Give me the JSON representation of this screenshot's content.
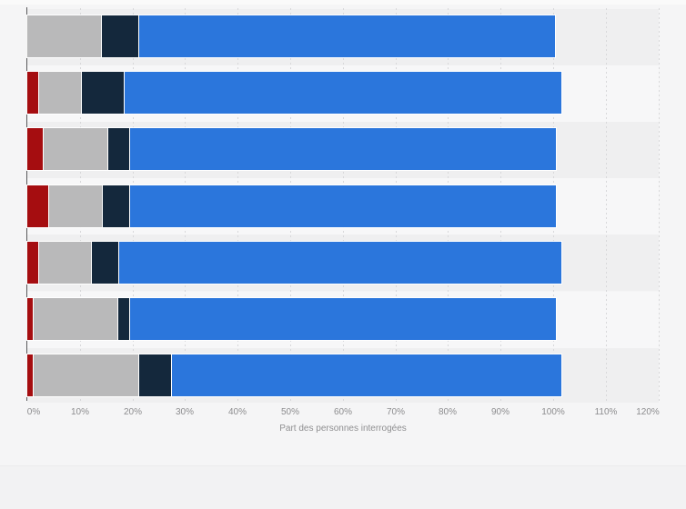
{
  "axis": {
    "label": "Part des personnes interrogées",
    "ticks": [
      "0%",
      "10%",
      "20%",
      "30%",
      "40%",
      "50%",
      "60%",
      "70%",
      "80%",
      "90%",
      "100%",
      "110%",
      "120%"
    ]
  },
  "chart_data": {
    "type": "bar",
    "orientation": "horizontal",
    "stacked": true,
    "title": "",
    "xlabel": "Part des personnes interrogées",
    "ylabel": "",
    "xlim": [
      0,
      120
    ],
    "tick_step": 10,
    "grid": "vertical-dotted",
    "legend_position": "none",
    "categories": [
      "",
      "",
      "",
      "",
      "",
      "",
      ""
    ],
    "series": [
      {
        "name": "dark-red",
        "color": "#a50d10",
        "values": [
          0,
          2,
          3,
          4,
          2,
          1,
          1
        ]
      },
      {
        "name": "gray",
        "color": "#b9b9ba",
        "values": [
          14,
          8,
          12,
          10,
          10,
          16,
          20
        ]
      },
      {
        "name": "dark-navy",
        "color": "#14283c",
        "values": [
          7,
          8,
          4,
          5,
          5,
          2,
          6
        ]
      },
      {
        "name": "blue",
        "color": "#2b76dc",
        "values": [
          79,
          83,
          81,
          81,
          84,
          81,
          74
        ]
      }
    ],
    "stack_totals": [
      100,
      101,
      100,
      100,
      101,
      100,
      101
    ]
  },
  "colors": {
    "background": "#f2f2f3",
    "card_background": "#f5f5f6",
    "band_odd": "#efeff0",
    "band_even": "#f7f7f8",
    "axis_line": "#59595b",
    "grid_line": "#d8d8da",
    "tick_text": "#8c8c8e",
    "segment_red": "#a50d10",
    "segment_gray": "#b9b9ba",
    "segment_navy": "#14283c",
    "segment_blue": "#2b76dc"
  }
}
